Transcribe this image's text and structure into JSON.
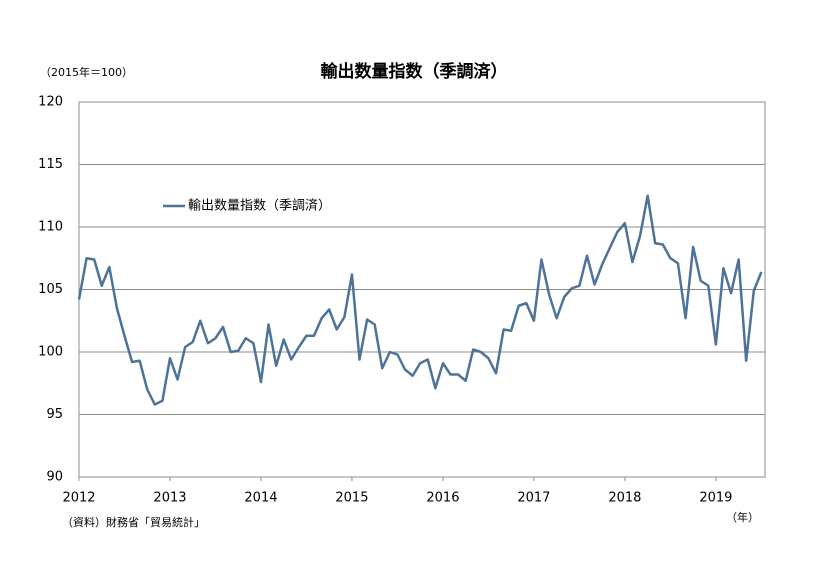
{
  "chart_data": {
    "type": "line",
    "title": "輸出数量指数（季調済）",
    "y_unit": "（2015年＝100）",
    "x_unit": "（年）",
    "source": "（資料）財務省「貿易統計」",
    "x": [
      2012,
      2012.083,
      2012.167,
      2012.25,
      2012.333,
      2012.417,
      2012.5,
      2012.583,
      2012.667,
      2012.75,
      2012.833,
      2012.917,
      2013,
      2013.083,
      2013.167,
      2013.25,
      2013.333,
      2013.417,
      2013.5,
      2013.583,
      2013.667,
      2013.75,
      2013.833,
      2013.917,
      2014,
      2014.083,
      2014.167,
      2014.25,
      2014.333,
      2014.417,
      2014.5,
      2014.583,
      2014.667,
      2014.75,
      2014.833,
      2014.917,
      2015,
      2015.083,
      2015.167,
      2015.25,
      2015.333,
      2015.417,
      2015.5,
      2015.583,
      2015.667,
      2015.75,
      2015.833,
      2015.917,
      2016,
      2016.083,
      2016.167,
      2016.25,
      2016.333,
      2016.417,
      2016.5,
      2016.583,
      2016.667,
      2016.75,
      2016.833,
      2016.917,
      2017,
      2017.083,
      2017.167,
      2017.25,
      2017.333,
      2017.417,
      2017.5,
      2017.583,
      2017.667,
      2017.75,
      2017.833,
      2017.917,
      2018,
      2018.083,
      2018.167,
      2018.25,
      2018.333,
      2018.417,
      2018.5,
      2018.583,
      2018.667,
      2018.75,
      2018.833,
      2018.917,
      2019,
      2019.083,
      2019.167,
      2019.25,
      2019.333,
      2019.417,
      2019.5
    ],
    "series": [
      {
        "name": "輸出数量指数（季調済）",
        "color": "#4d7398",
        "values": [
          104.2,
          107.5,
          107.4,
          105.3,
          106.8,
          103.5,
          101.3,
          99.2,
          99.3,
          97.0,
          95.8,
          96.1,
          99.5,
          97.8,
          100.4,
          100.8,
          102.5,
          100.7,
          101.1,
          102.0,
          100.0,
          100.1,
          101.1,
          100.7,
          97.6,
          102.2,
          98.9,
          101.0,
          99.4,
          100.4,
          101.3,
          101.3,
          102.7,
          103.4,
          101.8,
          102.8,
          106.2,
          99.4,
          102.6,
          102.2,
          98.7,
          100.0,
          99.8,
          98.6,
          98.1,
          99.1,
          99.4,
          97.1,
          99.1,
          98.2,
          98.2,
          97.7,
          100.2,
          100.0,
          99.5,
          98.3,
          101.8,
          101.7,
          103.7,
          103.9,
          102.5,
          107.4,
          104.6,
          102.7,
          104.4,
          105.1,
          105.3,
          107.7,
          105.4,
          107.0,
          108.3,
          109.6,
          110.3,
          107.2,
          109.3,
          112.5,
          108.7,
          108.6,
          107.5,
          107.1,
          102.7,
          108.4,
          105.7,
          105.3,
          100.6,
          106.7,
          104.7,
          107.4,
          99.3,
          104.9,
          106.4
        ]
      }
    ],
    "xlim": [
      2012,
      2019.54
    ],
    "xticks": [
      2012,
      2013,
      2014,
      2015,
      2016,
      2017,
      2018,
      2019
    ],
    "ylim": [
      90,
      120
    ],
    "yticks": [
      90,
      95,
      100,
      105,
      110,
      115,
      120
    ],
    "grid": true
  }
}
